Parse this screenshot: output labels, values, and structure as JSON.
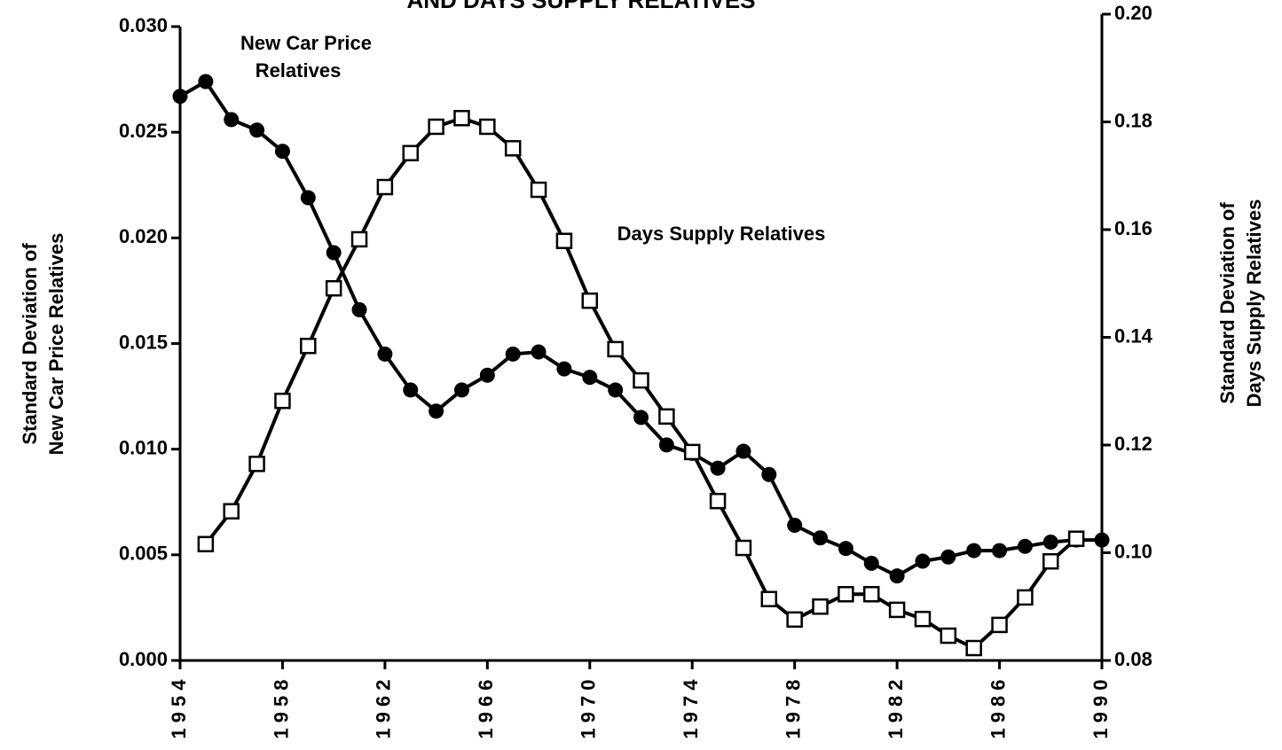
{
  "chart_data": {
    "type": "line",
    "title": "AND DAYS SUPPLY RELATIVES",
    "annotations": [
      "New Car Price",
      "Relatives",
      "Days Supply Relatives"
    ],
    "ylabel": [
      "Standard Deviation of",
      "New Car Price Relatives"
    ],
    "y2label": [
      "Standard Deviation of",
      "Days Supply Relatives"
    ],
    "x": [
      1954,
      1955,
      1956,
      1957,
      1958,
      1959,
      1960,
      1961,
      1962,
      1963,
      1964,
      1965,
      1966,
      1967,
      1968,
      1969,
      1970,
      1971,
      1972,
      1973,
      1974,
      1975,
      1976,
      1977,
      1978,
      1979,
      1980,
      1981,
      1982,
      1983,
      1984,
      1985,
      1986,
      1987,
      1988,
      1989,
      1990
    ],
    "xlim": [
      1954,
      1990
    ],
    "xticks": [
      1954,
      1958,
      1962,
      1966,
      1970,
      1974,
      1978,
      1982,
      1986,
      1990
    ],
    "ylim": [
      0,
      0.03
    ],
    "yticks": [
      {
        "value": 0,
        "label": "0.000"
      },
      0.005,
      {
        "value": 0.01,
        "label": "0.010"
      },
      0.015,
      {
        "value": 0.02,
        "label": "0.020"
      },
      0.025,
      {
        "value": 0.03,
        "label": "0.030"
      }
    ],
    "y2lim": [
      0.08,
      0.2
    ],
    "y2ticks": [
      0.08,
      {
        "value": 0.1,
        "label": "0.10"
      },
      0.12,
      0.14,
      0.16,
      0.18,
      {
        "value": 0.2,
        "label": "0.20"
      }
    ],
    "series": [
      {
        "color": "#000000",
        "marker": "circle",
        "values": [
          0.0267,
          0.0274,
          0.0256,
          0.0251,
          0.0241,
          0.0219,
          0.0193,
          0.0166,
          0.0145,
          0.0128,
          0.0118,
          0.0128,
          0.0135,
          0.0145,
          0.0146,
          0.0138,
          0.0134,
          0.0128,
          0.0115,
          0.0102,
          0.0098,
          0.0091,
          0.0099,
          0.0088,
          0.0064,
          0.0058,
          0.0053,
          0.0046,
          0.004,
          0.0047,
          0.0049,
          0.0052,
          0.0052,
          0.0054,
          0.0056,
          0.0057,
          0.0057
        ]
      },
      {
        "color": "#000000",
        "marker": "square",
        "axis": "y2",
        "values": [
          null,
          0.1016,
          0.1077,
          0.1165,
          0.1282,
          0.1384,
          0.1491,
          0.1582,
          0.1679,
          0.1742,
          0.1791,
          0.1807,
          0.1791,
          0.1751,
          0.1674,
          0.1579,
          0.1468,
          0.1378,
          0.132,
          0.1253,
          0.1187,
          0.1096,
          0.1009,
          0.0914,
          0.0876,
          0.09,
          0.0923,
          0.0923,
          0.0894,
          0.0877,
          0.0846,
          0.0823,
          0.0866,
          0.0917,
          0.0984,
          0.1026,
          null
        ]
      }
    ]
  }
}
